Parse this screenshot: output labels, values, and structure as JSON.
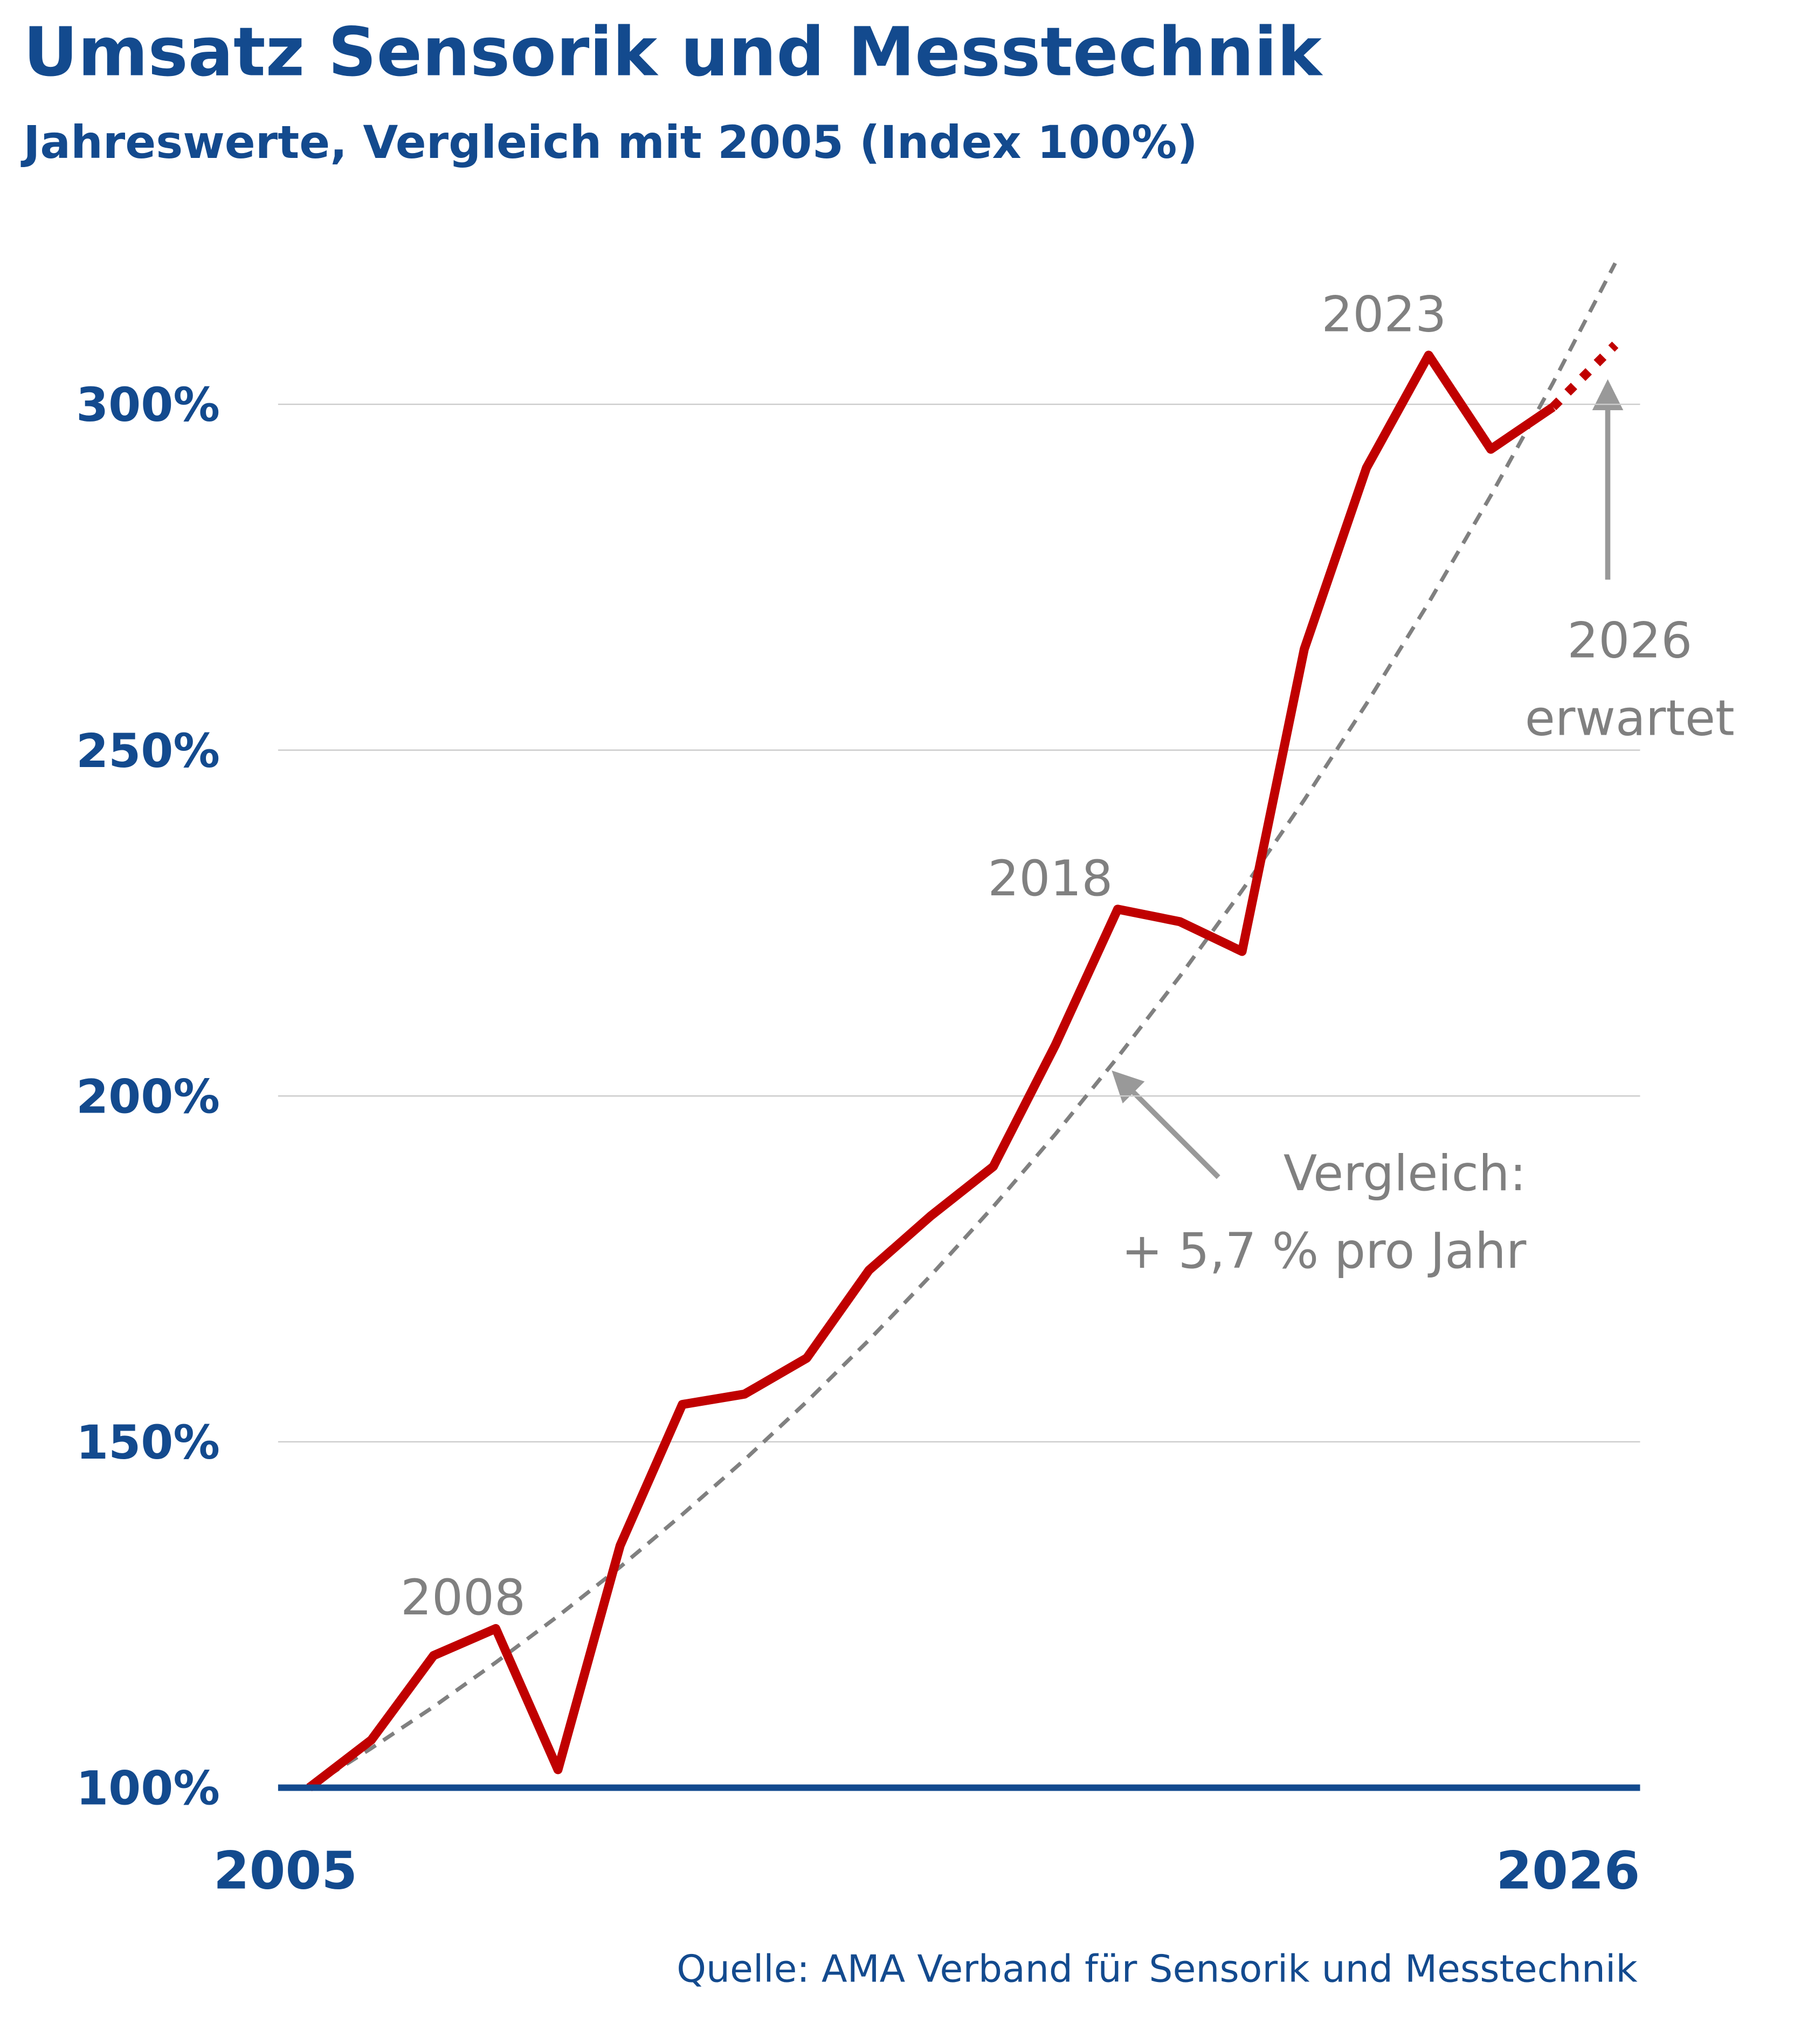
{
  "chart_data": {
    "type": "line",
    "title": "Umsatz Sensorik und Messtechnik",
    "subtitle": "Jahreswerte, Vergleich mit 2005 (Index 100%)",
    "source": "Quelle: AMA Verband für Sensorik und Messtechnik",
    "x": [
      2005,
      2006,
      2007,
      2008,
      2009,
      2010,
      2011,
      2012,
      2013,
      2014,
      2015,
      2016,
      2017,
      2018,
      2019,
      2020,
      2021,
      2022,
      2023,
      2024,
      2025,
      2026
    ],
    "series": [
      {
        "color": "#c00000",
        "style": "solid",
        "values": [
          100,
          106.9,
          119.1,
          123.0,
          102.6,
          135.0,
          155.4,
          156.9,
          162.1,
          174.8,
          182.7,
          189.8,
          207.4,
          227.0,
          225.2,
          220.9,
          264.6,
          290.8,
          307.1,
          293.5,
          299.6,
          null
        ]
      },
      {
        "color": "#c00000",
        "style": "dotted",
        "values": [
          null,
          null,
          null,
          null,
          null,
          null,
          null,
          null,
          null,
          null,
          null,
          null,
          null,
          null,
          null,
          null,
          null,
          null,
          null,
          null,
          299.6,
          308.6
        ]
      },
      {
        "color": "#808080",
        "style": "dashed",
        "values": [
          100,
          105.7,
          111.7,
          118.1,
          124.8,
          131.9,
          139.5,
          147.4,
          155.8,
          164.7,
          174.1,
          184.0,
          194.5,
          205.6,
          217.3,
          229.7,
          242.8,
          256.7,
          271.3,
          286.8,
          303.1,
          320.4
        ]
      }
    ],
    "xlim": [
      2004.5,
      2026.4
    ],
    "xticks": [
      2005,
      2026
    ],
    "ylim": [
      100,
      327
    ],
    "yticks": [
      {
        "value": 100,
        "label": "100%"
      },
      {
        "value": 150,
        "label": "150%"
      },
      {
        "value": 200,
        "label": "200%"
      },
      {
        "value": 250,
        "label": "250%"
      },
      {
        "value": 300,
        "label": "300%"
      }
    ],
    "grid": true,
    "annotations": [
      {
        "lines": [
          "2008"
        ]
      },
      {
        "lines": [
          "2018"
        ]
      },
      {
        "lines": [
          "2023"
        ]
      },
      {
        "lines": [
          "2026",
          "erwartet"
        ]
      },
      {
        "lines": [
          "Vergleich:",
          "+ 5,7 % pro Jahr"
        ]
      }
    ]
  }
}
